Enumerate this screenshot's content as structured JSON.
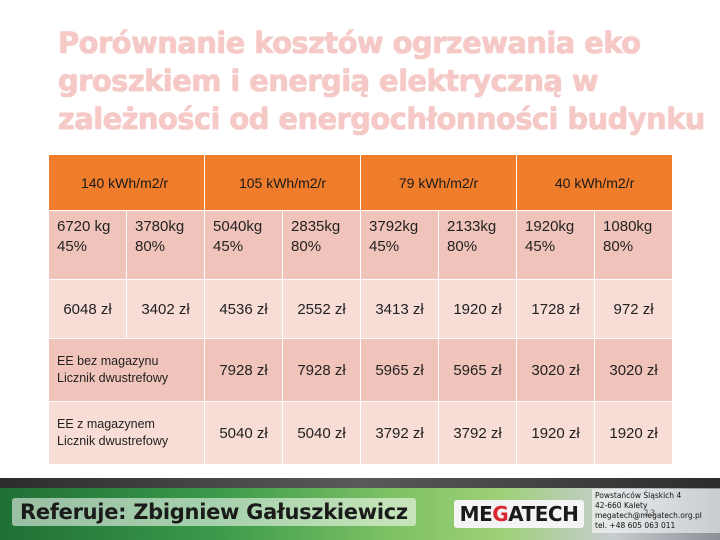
{
  "title": {
    "line1": "Porównanie kosztów ogrzewania eko",
    "line2": "groszkiem i energią elektryczną w",
    "line3": "zależności od energochłonności budynku"
  },
  "table": {
    "headers": [
      "140 kWh/m2/r",
      "105 kWh/m2/r",
      "79 kWh/m2/r",
      "40 kWh/m2/r"
    ],
    "mass_row": [
      {
        "kg": "6720 kg",
        "pct": "45%"
      },
      {
        "kg": "3780kg",
        "pct": "80%"
      },
      {
        "kg": "5040kg",
        "pct": "45%"
      },
      {
        "kg": "2835kg",
        "pct": "80%"
      },
      {
        "kg": "3792kg",
        "pct": "45%"
      },
      {
        "kg": "2133kg",
        "pct": "80%"
      },
      {
        "kg": "1920kg",
        "pct": "45%"
      },
      {
        "kg": "1080kg",
        "pct": "80%"
      }
    ],
    "cost_row": [
      "6048 zł",
      "3402 zł",
      "4536 zł",
      "2552 zł",
      "3413 zł",
      "1920 zł",
      "1728 zł",
      "972 zł"
    ],
    "ee_without": {
      "label1": "EE bez magazynu",
      "label2": "Licznik dwustrefowy",
      "values": [
        "7928 zł",
        "7928 zł",
        "5965 zł",
        "5965 zł",
        "3020 zł",
        "3020 zł"
      ]
    },
    "ee_with": {
      "label1": "EE z magazynem",
      "label2": "Licznik dwustrefowy",
      "values": [
        "5040 zł",
        "5040 zł",
        "3792 zł",
        "3792 zł",
        "1920 zł",
        "1920 zł"
      ]
    }
  },
  "footer": {
    "presenter": "Referuje: Zbigniew Gałuszkiewicz",
    "logo_left": "ME",
    "logo_mid": "G",
    "logo_right": "ATECH",
    "address1": "Powstańców Śląskich 4",
    "address2": "42-660 Kalety",
    "email": "megatech@megatech.org.pl",
    "phone": "tel. +48 605 063 011",
    "slide_number": "13"
  },
  "colors": {
    "header_bg": "#ef7d2c",
    "cell_light": "#f8dcd6",
    "cell_dark": "#f1c4bb",
    "title": "#f6c9c7"
  }
}
